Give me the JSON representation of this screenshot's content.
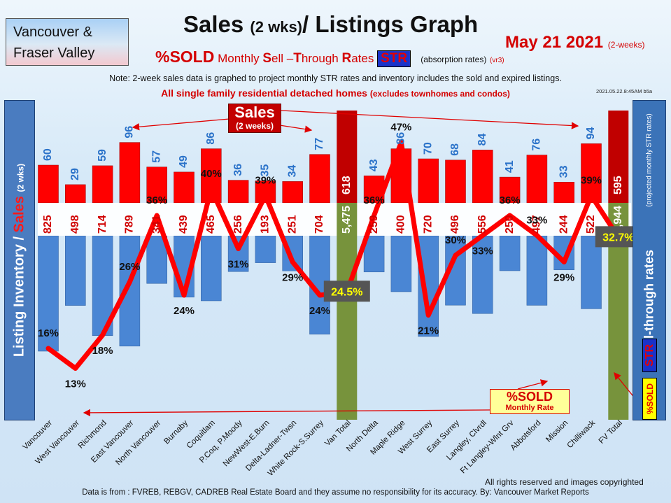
{
  "header": {
    "region_line1": "Vancouver &",
    "region_line2": "Fraser Valley",
    "title_main": "Sales",
    "title_small": "(2 wks)",
    "title_rest": "/ Listings Graph",
    "date": "May  21 2021",
    "date_note": "(2-weeks)",
    "sub_pct": "%SOLD",
    "sub_m": "Monthly ",
    "sub_s": "S",
    "sub_ell": "ell –",
    "sub_t": "T",
    "sub_hrough": "hrough ",
    "sub_r": "R",
    "sub_ates": "ates",
    "sub_str": "STR",
    "sub_abs": "(absorption rates)",
    "sub_vr": "(vr3)",
    "note": "Note: 2-week sales data is graphed to project monthly STR rates and inventory includes the sold and expired listings.",
    "scope": "All single family residential detached homes",
    "scope_small": "(excludes townhomes and condos)",
    "version": "2021.05.22.8:45AM b5a"
  },
  "left_banner": {
    "part1": "Listing Inventory /",
    "part2": "Sales",
    "part3": "(2  wks)"
  },
  "right_banner": {
    "main": "Sell-through rates",
    "sub": "(projected monthly STR rates)",
    "str": "STR",
    "sold": "%SOLD"
  },
  "callouts": {
    "sales_main": "Sales",
    "sales_sub": "(2 weeks)",
    "sold_main": "%SOLD",
    "sold_sub": "Monthly Rate"
  },
  "footer": {
    "rights": "All rights reserved and  images copyrighted",
    "source": "Data is from : FVREB, REBGV, CADREB Real Estate Board and they assume no responsibility for its accuracy. By: Vancouver Market Reports"
  },
  "colors": {
    "sales": "#ff0000",
    "inventory": "#4a86d4",
    "total": "#77933c",
    "total_sales": "#c00000",
    "line": "#ff0000"
  },
  "chart_data": {
    "type": "bar",
    "categories": [
      "Vancouver",
      "West Vancouver",
      "Richmond",
      "East Vancouver",
      "North Vancouver",
      "Burnaby",
      "Coquitlam",
      "P.Coq, P.Moody",
      "NewWest-E.Burn",
      "Delta-Ladner-Twsn",
      "White Rock-S.Surrey",
      "Van Total",
      "North Delta",
      "Maple Ridge",
      "West Surrey",
      "East Surrey",
      "Langley, Clvrdl",
      "Ft Langley-Wlnt Grv",
      "Abbotsford",
      "Mission",
      "Chilliwack",
      "FV Total"
    ],
    "series": [
      {
        "name": "Sales",
        "values": [
          60,
          29,
          59,
          96,
          57,
          49,
          86,
          36,
          35,
          34,
          77,
          618,
          43,
          86,
          70,
          68,
          84,
          41,
          76,
          33,
          94,
          595
        ]
      },
      {
        "name": "Listing Inventory",
        "values": [
          825,
          498,
          714,
          789,
          341,
          439,
          465,
          256,
          193,
          251,
          704,
          5475,
          259,
          400,
          720,
          496,
          556,
          250,
          497,
          244,
          522,
          3944
        ]
      },
      {
        "name": "%SOLD",
        "values": [
          16,
          13,
          18,
          26,
          36,
          24,
          40,
          31,
          39,
          29,
          24,
          24.5,
          36,
          47,
          21,
          30,
          33,
          36,
          33,
          29,
          39,
          32.7
        ]
      }
    ],
    "inventory_labels": [
      "825",
      "498",
      "714",
      "789",
      "341",
      "439",
      "465",
      "256",
      "193",
      "251",
      "704",
      "5,475",
      "259",
      "400",
      "720",
      "496",
      "556",
      "250",
      "497",
      "244",
      "522",
      "3,944"
    ],
    "pct_labels": [
      "16%",
      "13%",
      "18%",
      "26%",
      "36%",
      "24%",
      "40%",
      "31%",
      "39%",
      "29%",
      "24%",
      "24.5%",
      "36%",
      "47%",
      "21%",
      "30%",
      "33%",
      "36%",
      "33%",
      "29%",
      "39%",
      "32.7%"
    ],
    "total_indices": [
      11,
      21
    ]
  }
}
